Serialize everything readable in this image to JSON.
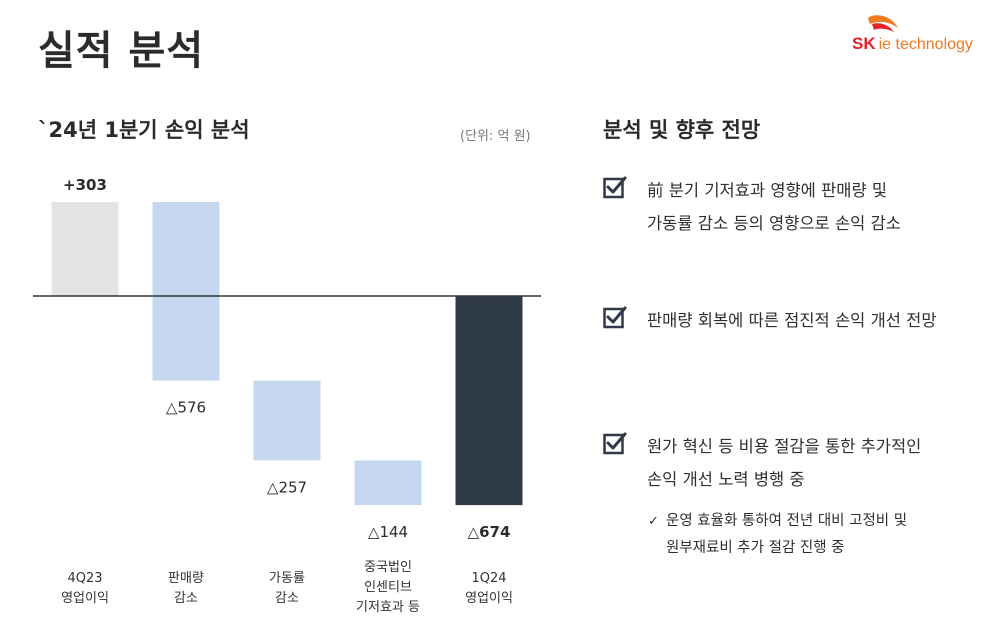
{
  "page_title": "실적 분석",
  "logo": {
    "sk": "SK",
    "rest": "ie technology"
  },
  "chart_title": "`24년 1분기 손익 분석",
  "unit_note": "(단위: 억 원)",
  "right_title": "분석 및 향후 전망",
  "bullets": [
    {
      "lines": [
        "前 분기 기저효과 영향에 판매량 및",
        "가동률 감소 등의 영향으로 손익 감소"
      ]
    },
    {
      "lines": [
        "판매량 회복에 따른 점진적 손익 개선 전망"
      ]
    },
    {
      "lines": [
        "원가 혁신 등 비용 절감을 통한 추가적인",
        "손익 개선 노력 병행 중"
      ],
      "sub": {
        "tick": "✓",
        "lines": [
          "운영 효율화 통하여 전년 대비 고정비 및",
          "원부재료비 추가 절감 진행 중"
        ]
      }
    }
  ],
  "chart_data": {
    "type": "waterfall",
    "title": "`24년 1분기 손익 분석",
    "unit": "(단위: 억 원)",
    "categories": [
      [
        "4Q23",
        "영업이익"
      ],
      [
        "판매량",
        "감소"
      ],
      [
        "가동률",
        "감소"
      ],
      [
        "중국법인",
        "인센티브",
        "기저효과 등"
      ],
      [
        "1Q24",
        "영업이익"
      ]
    ],
    "values": [
      303,
      -576,
      -257,
      -144,
      -674
    ],
    "value_labels": [
      "+303",
      "△576",
      "△257",
      "△144",
      "△674"
    ],
    "bar_kinds": [
      "total",
      "delta",
      "delta",
      "delta",
      "total"
    ],
    "colors": {
      "prior_total": "#e4e4e4",
      "decrease": "#c5d8f0",
      "current_total": "#2e3a48",
      "baseline": "#333333"
    }
  }
}
